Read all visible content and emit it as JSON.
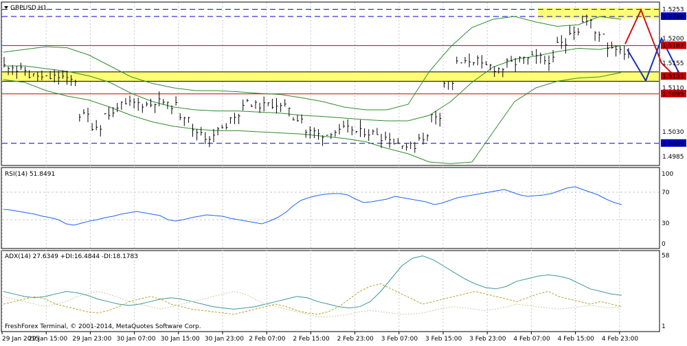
{
  "main": {
    "title": "GBPUSD,H1",
    "price_labels": [
      {
        "text": "1.5253",
        "value": 1.5253,
        "style": "plain"
      },
      {
        "text": "1.5240",
        "value": 1.524,
        "style": "boxed-blue"
      },
      {
        "text": "1.5200",
        "value": 1.52,
        "style": "plain"
      },
      {
        "text": "1.5187",
        "value": 1.5187,
        "style": "boxed-red"
      },
      {
        "text": "1.5155",
        "value": 1.5155,
        "style": "plain"
      },
      {
        "text": "1.5131",
        "value": 1.5131,
        "style": "boxed-red"
      },
      {
        "text": "1.5110",
        "value": 1.511,
        "style": "plain"
      },
      {
        "text": "1.5099",
        "value": 1.5099,
        "style": "boxed-red"
      },
      {
        "text": "1.5030",
        "value": 1.503,
        "style": "plain"
      },
      {
        "text": "1.5009",
        "value": 1.5009,
        "style": "boxed-blue"
      },
      {
        "text": "1.4985",
        "value": 1.4985,
        "style": "plain"
      }
    ],
    "price_range": [
      1.497,
      1.5265
    ],
    "blue_dashed_levels": [
      1.5253,
      1.524,
      1.5009
    ],
    "red_levels": [
      1.5187,
      1.5099
    ],
    "resistance_zone": [
      1.5236,
      1.5256
    ],
    "support_zone": [
      1.5122,
      1.5139
    ],
    "projection_colors": {
      "bearish": "#d01010",
      "bullish": "#1030c0"
    }
  },
  "rsi": {
    "title": "RSI(14) 51.8491",
    "levels": [
      "100",
      "70",
      "30",
      "0"
    ],
    "level_values": [
      100,
      70,
      30,
      0
    ]
  },
  "adx": {
    "title": "ADX(14) 27.6349 +DI:16.4844 -DI:18.1783",
    "levels": [
      "58",
      "1"
    ],
    "level_values": [
      58,
      1
    ]
  },
  "copyright": "FreshForex Terminal, © 2001-2014, MetaQuotes Software Corp.",
  "time_labels": [
    "29 Jan 2015",
    "29 Jan 15:00",
    "29 Jan 23:00",
    "30 Jan 07:00",
    "30 Jan 15:00",
    "30 Jan 23:00",
    "2 Feb 07:00",
    "2 Feb 15:00",
    "2 Feb 23:00",
    "3 Feb 07:00",
    "3 Feb 15:00",
    "3 Feb 23:00",
    "4 Feb 07:00",
    "4 Feb 15:00",
    "4 Feb 23:00"
  ],
  "colors": {
    "grid": "#c8c8c8",
    "level_blue": "#0000c8",
    "level_red": "#c80000",
    "zone_fill": "#ffff66",
    "bollinger": "#2e8b2e",
    "rsi_line": "#1e64ff",
    "adx_line": "#3c9696",
    "plus_di": "#b4a028",
    "minus_di": "#c8c8a0"
  }
}
